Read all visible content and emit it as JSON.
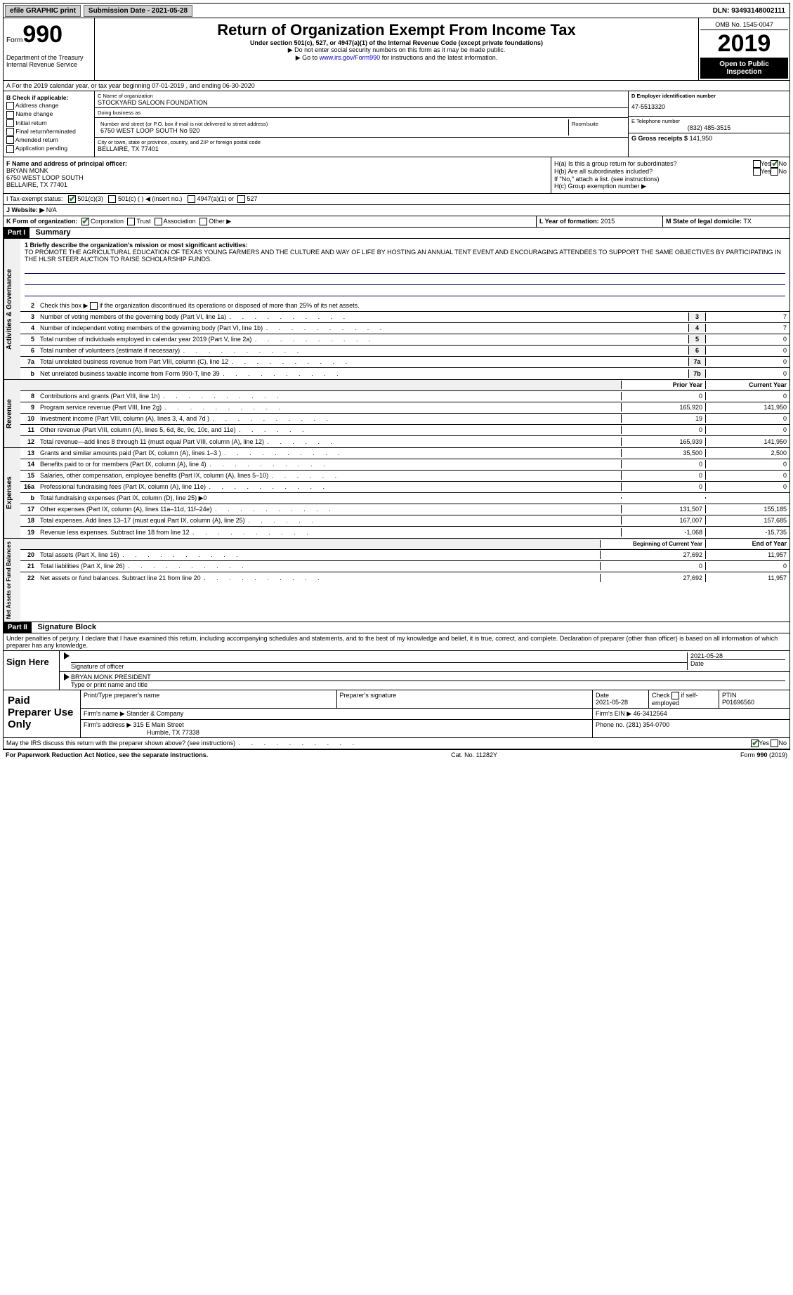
{
  "topbar": {
    "efile": "efile GRAPHIC print",
    "sub_label": "Submission Date - 2021-05-28",
    "dln": "DLN: 93493148002111"
  },
  "header": {
    "form": "Form",
    "num": "990",
    "dept": "Department of the Treasury\nInternal Revenue Service",
    "title": "Return of Organization Exempt From Income Tax",
    "sub": "Under section 501(c), 527, or 4947(a)(1) of the Internal Revenue Code (except private foundations)",
    "note1": "▶ Do not enter social security numbers on this form as it may be made public.",
    "note2": "▶ Go to www.irs.gov/Form990 for instructions and the latest information.",
    "link": "www.irs.gov/Form990",
    "omb": "OMB No. 1545-0047",
    "year": "2019",
    "open": "Open to Public Inspection"
  },
  "sectionA": {
    "text": "A For the 2019 calendar year, or tax year beginning 07-01-2019    , and ending 06-30-2020"
  },
  "B": {
    "hdr": "B Check if applicable:",
    "items": [
      "Address change",
      "Name change",
      "Initial return",
      "Final return/terminated",
      "Amended return",
      "Application pending"
    ]
  },
  "C": {
    "name_lbl": "C Name of organization",
    "name": "STOCKYARD SALOON FOUNDATION",
    "dba_lbl": "Doing business as",
    "dba": "",
    "street_lbl": "Number and street (or P.O. box if mail is not delivered to street address)",
    "room_lbl": "Room/suite",
    "street": "6750 WEST LOOP SOUTH No 920",
    "city_lbl": "City or town, state or province, country, and ZIP or foreign postal code",
    "city": "BELLAIRE, TX  77401"
  },
  "D": {
    "lbl": "D Employer identification number",
    "val": "47-5513320"
  },
  "E": {
    "lbl": "E Telephone number",
    "val": "(832) 485-3515"
  },
  "G": {
    "lbl": "G Gross receipts $",
    "val": "141,950"
  },
  "F": {
    "lbl": "F  Name and address of principal officer:",
    "name": "BRYAN MONK",
    "street": "6750 WEST LOOP SOUTH",
    "city": "BELLAIRE, TX  77401"
  },
  "H": {
    "a": "H(a)  Is this a group return for subordinates?",
    "b": "H(b)  Are all subordinates included?",
    "b_note": "If \"No,\" attach a list. (see instructions)",
    "c": "H(c)  Group exemption number ▶",
    "yes": "Yes",
    "no": "No"
  },
  "I": {
    "lbl": "I    Tax-exempt status:",
    "o1": "501(c)(3)",
    "o2": "501(c) (  ) ◀ (insert no.)",
    "o3": "4947(a)(1) or",
    "o4": "527"
  },
  "J": {
    "lbl": "J   Website: ▶",
    "val": "N/A"
  },
  "K": {
    "lbl": "K Form of organization:",
    "o1": "Corporation",
    "o2": "Trust",
    "o3": "Association",
    "o4": "Other ▶"
  },
  "L": {
    "lbl": "L Year of formation:",
    "val": "2015"
  },
  "M": {
    "lbl": "M State of legal domicile:",
    "val": "TX"
  },
  "part1": {
    "hdr": "Part I",
    "title": "Summary",
    "q1": "1  Briefly describe the organization's mission or most significant activities:",
    "mission": "TO PROMOTE THE AGRICULTURAL EDUCATION OF TEXAS YOUNG FARMERS AND THE CULTURE AND WAY OF LIFE BY HOSTING AN ANNUAL TENT EVENT AND ENCOURAGING ATTENDEES TO SUPPORT THE SAME OBJECTIVES BY PARTICIPATING IN THE HLSR STEER AUCTION TO RAISE SCHOLARSHIP FUNDS.",
    "q2": "Check this box ▶       if the organization discontinued its operations or disposed of more than 25% of its net assets.",
    "lines_gov": [
      {
        "n": "3",
        "t": "Number of voting members of the governing body (Part VI, line 1a)",
        "box": "3",
        "v": "7"
      },
      {
        "n": "4",
        "t": "Number of independent voting members of the governing body (Part VI, line 1b)",
        "box": "4",
        "v": "7"
      },
      {
        "n": "5",
        "t": "Total number of individuals employed in calendar year 2019 (Part V, line 2a)",
        "box": "5",
        "v": "0"
      },
      {
        "n": "6",
        "t": "Total number of volunteers (estimate if necessary)",
        "box": "6",
        "v": "0"
      },
      {
        "n": "7a",
        "t": "Total unrelated business revenue from Part VIII, column (C), line 12",
        "box": "7a",
        "v": "0"
      },
      {
        "n": "b",
        "t": "Net unrelated business taxable income from Form 990-T, line 39",
        "box": "7b",
        "v": "0"
      }
    ],
    "col_prior": "Prior Year",
    "col_curr": "Current Year",
    "rev": [
      {
        "n": "8",
        "t": "Contributions and grants (Part VIII, line 1h)",
        "p": "0",
        "c": "0"
      },
      {
        "n": "9",
        "t": "Program service revenue (Part VIII, line 2g)",
        "p": "165,920",
        "c": "141,950"
      },
      {
        "n": "10",
        "t": "Investment income (Part VIII, column (A), lines 3, 4, and 7d )",
        "p": "19",
        "c": "0"
      },
      {
        "n": "11",
        "t": "Other revenue (Part VIII, column (A), lines 5, 6d, 8c, 9c, 10c, and 11e)",
        "p": "0",
        "c": "0"
      },
      {
        "n": "12",
        "t": "Total revenue—add lines 8 through 11 (must equal Part VIII, column (A), line 12)",
        "p": "165,939",
        "c": "141,950"
      }
    ],
    "exp": [
      {
        "n": "13",
        "t": "Grants and similar amounts paid (Part IX, column (A), lines 1–3 )",
        "p": "35,500",
        "c": "2,500"
      },
      {
        "n": "14",
        "t": "Benefits paid to or for members (Part IX, column (A), line 4)",
        "p": "0",
        "c": "0"
      },
      {
        "n": "15",
        "t": "Salaries, other compensation, employee benefits (Part IX, column (A), lines 5–10)",
        "p": "0",
        "c": "0"
      },
      {
        "n": "16a",
        "t": "Professional fundraising fees (Part IX, column (A), line 11e)",
        "p": "0",
        "c": "0"
      },
      {
        "n": "b",
        "t": "Total fundraising expenses (Part IX, column (D), line 25) ▶0",
        "p": "",
        "c": ""
      },
      {
        "n": "17",
        "t": "Other expenses (Part IX, column (A), lines 11a–11d, 11f–24e)",
        "p": "131,507",
        "c": "155,185"
      },
      {
        "n": "18",
        "t": "Total expenses. Add lines 13–17 (must equal Part IX, column (A), line 25)",
        "p": "167,007",
        "c": "157,685"
      },
      {
        "n": "19",
        "t": "Revenue less expenses. Subtract line 18 from line 12",
        "p": "-1,068",
        "c": "-15,735"
      }
    ],
    "col_beg": "Beginning of Current Year",
    "col_end": "End of Year",
    "net": [
      {
        "n": "20",
        "t": "Total assets (Part X, line 16)",
        "p": "27,692",
        "c": "11,957"
      },
      {
        "n": "21",
        "t": "Total liabilities (Part X, line 26)",
        "p": "0",
        "c": "0"
      },
      {
        "n": "22",
        "t": "Net assets or fund balances. Subtract line 21 from line 20",
        "p": "27,692",
        "c": "11,957"
      }
    ],
    "side_gov": "Activities & Governance",
    "side_rev": "Revenue",
    "side_exp": "Expenses",
    "side_net": "Net Assets or Fund Balances"
  },
  "part2": {
    "hdr": "Part II",
    "title": "Signature Block",
    "decl": "Under penalties of perjury, I declare that I have examined this return, including accompanying schedules and statements, and to the best of my knowledge and belief, it is true, correct, and complete. Declaration of preparer (other than officer) is based on all information of which preparer has any knowledge.",
    "sign_here": "Sign Here",
    "sig_officer": "Signature of officer",
    "sig_date": "2021-05-28",
    "date_lbl": "Date",
    "name_title": "BRYAN MONK PRESIDENT",
    "name_title_lbl": "Type or print name and title",
    "paid": "Paid Preparer Use Only",
    "p_name_lbl": "Print/Type preparer's name",
    "p_sig_lbl": "Preparer's signature",
    "p_date": "2021-05-28",
    "p_check": "Check        if self-employed",
    "ptin_lbl": "PTIN",
    "ptin": "P01696560",
    "firm_name_lbl": "Firm's name   ▶",
    "firm_name": "Stander & Company",
    "firm_ein_lbl": "Firm's EIN ▶",
    "firm_ein": "46-3412564",
    "firm_addr_lbl": "Firm's address ▶",
    "firm_addr": "315 E Main Street",
    "firm_addr2": "Humble, TX  77338",
    "phone_lbl": "Phone no.",
    "phone": "(281) 354-0700",
    "discuss": "May the IRS discuss this return with the preparer shown above? (see instructions)"
  },
  "footer": {
    "l": "For Paperwork Reduction Act Notice, see the separate instructions.",
    "m": "Cat. No. 11282Y",
    "r": "Form 990 (2019)"
  }
}
